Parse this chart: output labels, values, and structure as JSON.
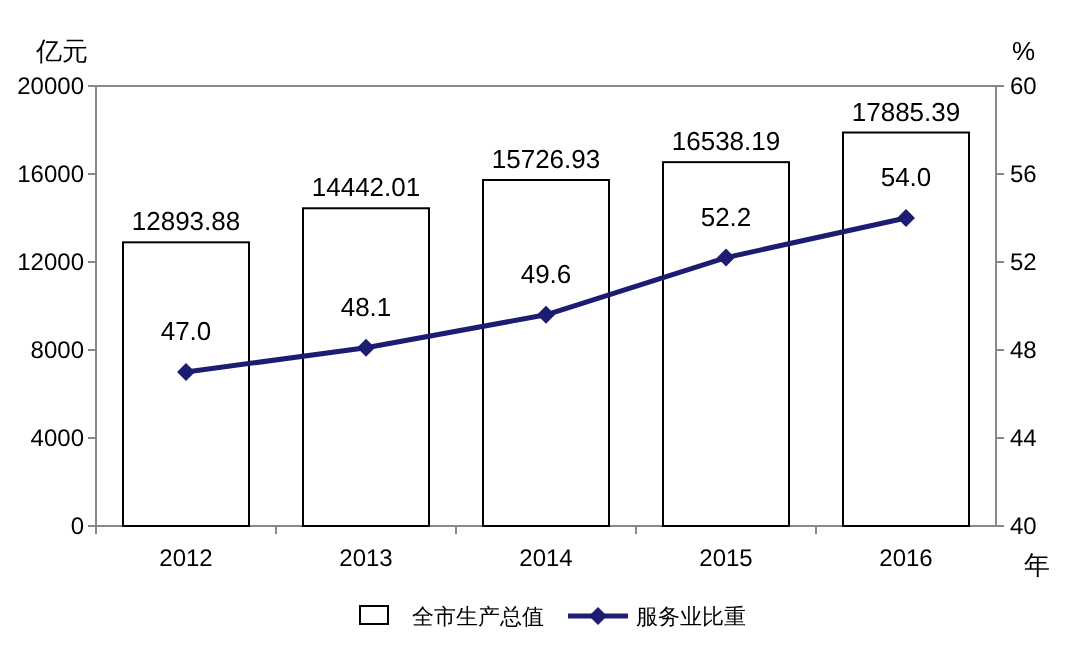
{
  "chart_data": {
    "type": "bar",
    "categories": [
      "2012",
      "2013",
      "2014",
      "2015",
      "2016"
    ],
    "series": [
      {
        "name": "全市生产总值",
        "color": "#ffffff",
        "values": [
          12893.88,
          14442.01,
          15726.93,
          16538.19,
          17885.39
        ]
      },
      {
        "name": "服务业比重",
        "type": "line",
        "axis": "y2",
        "color": "#1c1c72",
        "values": [
          47.0,
          48.1,
          49.6,
          52.2,
          54.0
        ],
        "value_labels": [
          "47.0",
          "48.1",
          "49.6",
          "52.2",
          "54.0"
        ]
      }
    ],
    "ylabel": "亿元",
    "y2label": "%",
    "xlabel": "年",
    "ylim": [
      0,
      20000
    ],
    "yticks": [
      0,
      4000,
      8000,
      12000,
      16000,
      20000
    ],
    "y2lim": [
      40,
      60
    ],
    "y2ticks": [
      40,
      44,
      48,
      52,
      56,
      60
    ],
    "marker": "diamond",
    "legend": "bottom",
    "data_labels": true
  }
}
